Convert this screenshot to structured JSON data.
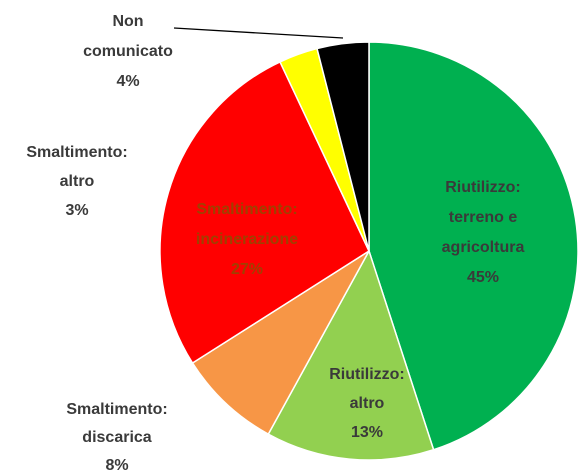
{
  "chart_data": {
    "type": "pie",
    "categories": [
      [
        "Riutilizzo:",
        "terreno e",
        "agricoltura"
      ],
      [
        "Riutilizzo:",
        "altro"
      ],
      [
        "Smaltimento:",
        "discarica"
      ],
      [
        "Smaltimento:",
        "incinerazione"
      ],
      [
        "Smaltimento:",
        "altro"
      ],
      [
        "Non",
        "comunicato"
      ]
    ],
    "values": [
      45,
      13,
      8,
      27,
      3,
      4
    ],
    "value_labels": [
      "45%",
      "13%",
      "8%",
      "27%",
      "3%",
      "4%"
    ],
    "colors": [
      "#00b050",
      "#92d050",
      "#f79646",
      "#ff0000",
      "#ffff00",
      "#000000"
    ]
  }
}
